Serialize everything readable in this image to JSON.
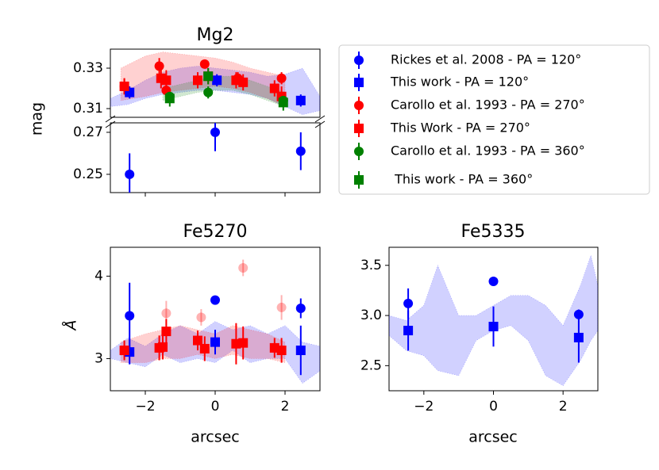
{
  "chart_data": [
    {
      "type": "errorbar",
      "title": "Mg2",
      "y_label": "mag",
      "xlim": [
        -3,
        3
      ],
      "xticks": [
        {
          "value": -2,
          "label": "−2"
        },
        0,
        2
      ],
      "xticklabels": false,
      "ylim": [
        [
          0.3057,
          0.3394
        ],
        [
          0.2413,
          0.2745
        ]
      ],
      "yticks": [
        0.25,
        0.27,
        0.31,
        0.33
      ],
      "series": [
        {
          "name": "Rickes et al. 2008 - PA = 120°",
          "color": "#0000ff",
          "marker": "circle",
          "x": [
            -2.45,
            0,
            2.45
          ],
          "values": [
            0.25,
            0.27,
            0.261
          ],
          "errors": [
            0.01,
            0.009,
            0.009
          ]
        },
        {
          "name": "This work - PA = 120°",
          "color": "#0000ff",
          "marker": "square",
          "x": [
            -2.45,
            0.05,
            2.45
          ],
          "values": [
            0.318,
            0.324,
            0.314
          ],
          "errors": [
            0.003,
            0.003,
            0.003
          ]
        },
        {
          "name": "Carollo et al. 1993 - PA = 270°",
          "color": "#ff0000",
          "marker": "circle",
          "x": [
            -2.6,
            -1.6,
            -1.4,
            -0.3,
            0.65,
            1.9
          ],
          "values": [
            0.321,
            0.331,
            0.319,
            0.332,
            0.325,
            0.325
          ],
          "errors": [
            0.004,
            0.004,
            0.004,
            0.002,
            0.003,
            0.003
          ]
        },
        {
          "name": "This Work - PA = 270°",
          "color": "#ff0000",
          "marker": "square",
          "x": [
            -2.6,
            -1.55,
            -1.4,
            -0.5,
            -0.2,
            0.6,
            0.8,
            1.7,
            1.9
          ],
          "values": [
            0.321,
            0.325,
            0.324,
            0.324,
            0.326,
            0.324,
            0.323,
            0.32,
            0.316
          ],
          "errors": [
            0.004,
            0.005,
            0.005,
            0.004,
            0.004,
            0.004,
            0.004,
            0.004,
            0.005
          ]
        },
        {
          "name": "Carollo et al. 1993 - PA = 360°",
          "color": "#008000",
          "marker": "circle",
          "x": [
            -1.3,
            -0.2,
            1.95
          ],
          "values": [
            0.316,
            0.318,
            0.314
          ],
          "errors": [
            0.003,
            0.003,
            0.003
          ]
        },
        {
          "name": " This work - PA = 360°",
          "color": "#008000",
          "marker": "square",
          "x": [
            -1.3,
            -0.2,
            1.95
          ],
          "values": [
            0.315,
            0.326,
            0.313
          ],
          "errors": [
            0.004,
            0.004,
            0.004
          ]
        }
      ],
      "bands": [
        {
          "color": "#0000ff",
          "x": [
            -3,
            -2.5,
            -2,
            -1.5,
            -1,
            -0.5,
            0,
            0.5,
            1,
            1.5,
            2,
            2.5,
            3
          ],
          "low": [
            0.311,
            0.312,
            0.315,
            0.317,
            0.318,
            0.319,
            0.319,
            0.318,
            0.317,
            0.315,
            0.311,
            0.307,
            0.309
          ],
          "high": [
            0.315,
            0.319,
            0.324,
            0.328,
            0.33,
            0.331,
            0.33,
            0.329,
            0.328,
            0.326,
            0.327,
            0.33,
            0.316
          ]
        },
        {
          "color": "#ff0000",
          "x": [
            -2.7,
            -2,
            -1.5,
            -1,
            -0.5,
            0,
            0.5,
            1,
            1.5,
            2
          ],
          "low": [
            0.314,
            0.316,
            0.318,
            0.319,
            0.32,
            0.321,
            0.32,
            0.318,
            0.315,
            0.311
          ],
          "high": [
            0.33,
            0.336,
            0.338,
            0.337,
            0.336,
            0.335,
            0.333,
            0.33,
            0.328,
            0.326
          ]
        },
        {
          "color": "#008000",
          "x": [
            -1.5,
            -1,
            -0.5,
            0,
            0.5,
            1,
            1.5,
            2
          ],
          "low": [
            0.314,
            0.316,
            0.318,
            0.319,
            0.319,
            0.317,
            0.314,
            0.311
          ],
          "high": [
            0.32,
            0.322,
            0.324,
            0.326,
            0.326,
            0.324,
            0.321,
            0.318
          ]
        }
      ]
    },
    {
      "type": "errorbar",
      "title": "Fe5270",
      "y_label": "Å",
      "x_label": "arcsec",
      "xlim": [
        -3,
        3
      ],
      "xticks": [
        {
          "value": -2,
          "label": "−2"
        },
        0,
        2
      ],
      "ylim": [
        2.61,
        4.35
      ],
      "yticks": [
        3,
        4
      ],
      "series": [
        {
          "color": "#0000ff",
          "marker": "circle",
          "x": [
            -2.45,
            0,
            2.45
          ],
          "values": [
            3.52,
            3.71,
            3.61
          ],
          "errors": [
            0.4,
            0.05,
            0.12
          ]
        },
        {
          "color": "#0000ff",
          "marker": "square",
          "x": [
            -2.45,
            0,
            2.45
          ],
          "values": [
            3.08,
            3.2,
            3.1
          ],
          "errors": [
            0.15,
            0.15,
            0.3
          ]
        },
        {
          "color": "#ff0000",
          "marker": "circle",
          "alpha": 0.3,
          "x": [
            -2.6,
            -1.4,
            -0.4,
            0.8,
            1.9
          ],
          "values": [
            3.1,
            3.55,
            3.5,
            4.1,
            3.62
          ],
          "errors": [
            0.1,
            0.15,
            0.1,
            0.1,
            0.15
          ]
        },
        {
          "color": "#ff0000",
          "marker": "square",
          "x": [
            -2.6,
            -1.6,
            -1.4,
            -1.5,
            -0.5,
            -0.3,
            0.6,
            0.8,
            1.7,
            1.9
          ],
          "values": [
            3.1,
            3.13,
            3.33,
            3.14,
            3.22,
            3.12,
            3.18,
            3.19,
            3.13,
            3.1
          ],
          "errors": [
            0.12,
            0.15,
            0.15,
            0.15,
            0.12,
            0.15,
            0.25,
            0.2,
            0.12,
            0.15
          ]
        }
      ],
      "bands": [
        {
          "color": "#0000ff",
          "x": [
            -3,
            -2.5,
            -2,
            -1.5,
            -1,
            -0.5,
            0,
            0.5,
            1,
            1.5,
            2,
            2.5,
            3
          ],
          "low": [
            3.0,
            2.95,
            2.9,
            3.05,
            2.95,
            3.0,
            2.95,
            3.1,
            2.95,
            3.0,
            3.0,
            2.7,
            2.85
          ],
          "high": [
            3.1,
            3.25,
            3.15,
            3.3,
            3.4,
            3.3,
            3.45,
            3.35,
            3.4,
            3.3,
            3.4,
            3.2,
            3.15
          ]
        },
        {
          "color": "#ff0000",
          "x": [
            -2.7,
            -2,
            -1.5,
            -1,
            -0.5,
            0,
            0.5,
            1,
            1.5,
            2
          ],
          "low": [
            2.95,
            2.95,
            3.0,
            3.0,
            3.05,
            3.0,
            3.05,
            3.0,
            3.0,
            2.95
          ],
          "high": [
            3.2,
            3.3,
            3.35,
            3.4,
            3.35,
            3.3,
            3.4,
            3.35,
            3.3,
            3.2
          ]
        }
      ]
    },
    {
      "type": "errorbar",
      "title": "Fe5335",
      "x_label": "arcsec",
      "xlim": [
        -3,
        3
      ],
      "xticks": [
        {
          "value": -2,
          "label": "−2"
        },
        0,
        2
      ],
      "ylim": [
        2.25,
        3.68
      ],
      "yticks": [
        {
          "value": 2.5,
          "label": "2.5"
        },
        {
          "value": 3,
          "label": "3.0"
        },
        3.5
      ],
      "series": [
        {
          "color": "#0000ff",
          "marker": "circle",
          "x": [
            -2.45,
            0,
            2.45
          ],
          "values": [
            3.12,
            3.34,
            3.01
          ],
          "errors": [
            0.15,
            0.02,
            0.05
          ]
        },
        {
          "color": "#0000ff",
          "marker": "square",
          "x": [
            -2.45,
            0,
            2.45
          ],
          "values": [
            2.85,
            2.89,
            2.78
          ],
          "errors": [
            0.2,
            0.2,
            0.25
          ]
        }
      ],
      "bands": [
        {
          "color": "#0000ff",
          "x": [
            -3,
            -2.5,
            -2,
            -1.6,
            -1,
            -0.5,
            0,
            0.5,
            1,
            1.5,
            2,
            2.5,
            2.8,
            3
          ],
          "low": [
            2.8,
            2.65,
            2.6,
            2.45,
            2.4,
            2.75,
            2.85,
            2.9,
            2.75,
            2.4,
            2.3,
            2.55,
            2.75,
            2.85
          ],
          "high": [
            3.0,
            2.95,
            3.1,
            3.5,
            3.0,
            3.0,
            3.1,
            3.2,
            3.2,
            3.1,
            2.9,
            3.3,
            3.6,
            3.3
          ]
        }
      ]
    }
  ]
}
